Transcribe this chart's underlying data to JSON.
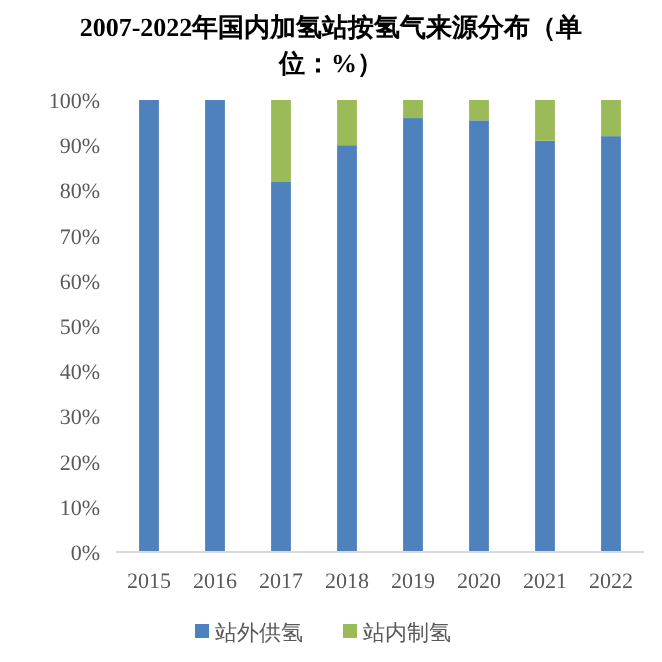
{
  "chart_data": {
    "type": "bar",
    "stacked": true,
    "title": "2007-2022年国内加氢站按氢气来源分布（单位：%）",
    "categories": [
      "2015",
      "2016",
      "2017",
      "2018",
      "2019",
      "2020",
      "2021",
      "2022"
    ],
    "series": [
      {
        "name": "站外供氢",
        "color": "#4f81bd",
        "values": [
          100,
          100,
          82,
          90,
          96,
          95.5,
          91,
          92
        ]
      },
      {
        "name": "站内制氢",
        "color": "#9bbb59",
        "values": [
          0,
          0,
          18,
          10,
          4,
          4.5,
          9,
          8
        ]
      }
    ],
    "ylim": [
      0,
      100
    ],
    "yticks": [
      {
        "value": 0,
        "label": "0%"
      },
      {
        "value": 10,
        "label": "10%"
      },
      {
        "value": 20,
        "label": "20%"
      },
      {
        "value": 30,
        "label": "30%"
      },
      {
        "value": 40,
        "label": "40%"
      },
      {
        "value": 50,
        "label": "50%"
      },
      {
        "value": 60,
        "label": "60%"
      },
      {
        "value": 70,
        "label": "70%"
      },
      {
        "value": 80,
        "label": "80%"
      },
      {
        "value": 90,
        "label": "90%"
      },
      {
        "value": 100,
        "label": "100%"
      }
    ],
    "grid": false,
    "legend": "bottom"
  }
}
